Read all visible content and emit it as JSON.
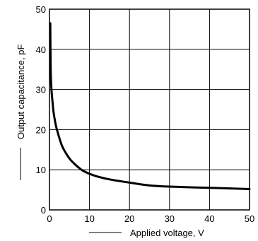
{
  "chart_data": {
    "type": "line",
    "title": "",
    "xlabel": "Applied voltage, V",
    "ylabel": "Output capacitance, pF",
    "xlim": [
      0,
      50
    ],
    "ylim": [
      0,
      50
    ],
    "x_ticks": [
      "0",
      "10",
      "20",
      "30",
      "40",
      "50"
    ],
    "y_ticks": [
      "0",
      "10",
      "20",
      "30",
      "40",
      "50"
    ],
    "grid": true,
    "legend": "none",
    "series": [
      {
        "color": "#000000",
        "x": [
          0.2,
          0.3,
          0.5,
          0.8,
          1,
          1.5,
          2,
          3,
          4,
          5,
          6,
          8,
          10,
          12,
          15,
          20,
          25,
          30,
          40,
          50
        ],
        "y": [
          46.5,
          35,
          30,
          26.5,
          24.5,
          21.5,
          19.5,
          16.3,
          14.3,
          12.8,
          11.7,
          10,
          9,
          8.3,
          7.6,
          6.8,
          6.1,
          5.8,
          5.5,
          5.2
        ]
      }
    ]
  }
}
